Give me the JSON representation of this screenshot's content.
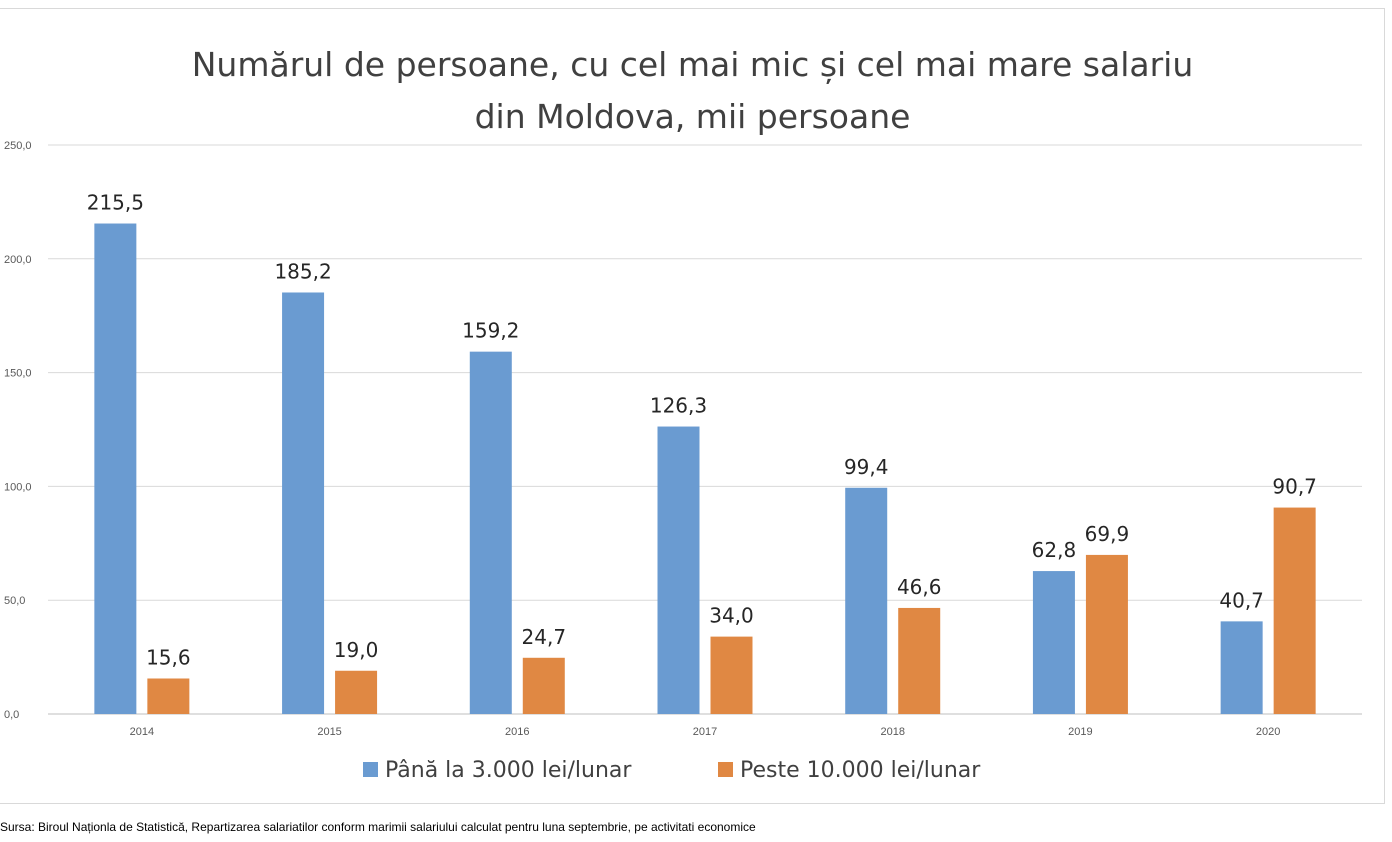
{
  "chart_data": {
    "type": "bar",
    "title": "Numărul de persoane, cu cel mai mic și cel mai mare salariu din Moldova, mii persoane",
    "title_lines": [
      "Numărul de persoane, cu cel mai mic și cel mai mare salariu",
      "din Moldova, mii persoane"
    ],
    "categories": [
      "2014",
      "2015",
      "2016",
      "2017",
      "2018",
      "2019",
      "2020"
    ],
    "series": [
      {
        "name": "Până la 3.000 lei/lunar",
        "color": "#6a9bd1",
        "values": [
          215.5,
          185.2,
          159.2,
          126.3,
          99.4,
          62.8,
          40.7
        ],
        "labels": [
          "215,5",
          "185,2",
          "159,2",
          "126,3",
          "99,4",
          "62,8",
          "40,7"
        ]
      },
      {
        "name": "Peste 10.000 lei/lunar",
        "color": "#e08843",
        "values": [
          15.6,
          19.0,
          24.7,
          34.0,
          46.6,
          69.9,
          90.7
        ],
        "labels": [
          "15,6",
          "19,0",
          "24,7",
          "34,0",
          "46,6",
          "69,9",
          "90,7"
        ]
      }
    ],
    "yticks": [
      "0,0",
      "50,0",
      "100,0",
      "150,0",
      "200,0",
      "250,0"
    ],
    "ytick_values": [
      0,
      50,
      100,
      150,
      200,
      250
    ],
    "ylim": [
      0,
      250
    ],
    "xlabel": "",
    "ylabel": "",
    "grid": true,
    "legend_position": "bottom"
  },
  "source_text": "Sursa: Biroul Naționla de Statistică, Repartizarea salariatilor conform marimii salariului calculat pentru luna septembrie, pe activitati economice"
}
